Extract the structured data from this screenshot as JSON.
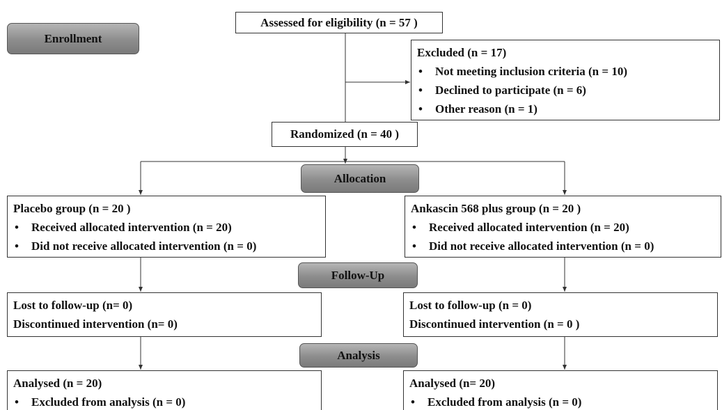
{
  "stages": [
    "Enrollment",
    "Allocation",
    "Follow-Up",
    "Analysis"
  ],
  "boxes": [
    {
      "title": "Assessed for eligibility (n = 57 )"
    },
    {
      "title": "Excluded (n = 17)",
      "bullets": [
        "Not meeting inclusion criteria (n = 10)",
        "Declined to participate (n = 6)",
        "Other reason (n = 1)"
      ]
    },
    {
      "title": "Randomized (n = 40 )"
    },
    {
      "title": "Placebo group (n = 20 )",
      "bullets": [
        "Received allocated intervention (n = 20)",
        "Did not receive allocated intervention (n = 0)"
      ]
    },
    {
      "title": "Ankascin 568 plus group (n = 20 )",
      "bullets": [
        "Received allocated intervention (n = 20)",
        "Did not receive allocated intervention (n = 0)"
      ]
    },
    {
      "title": "Lost to follow-up (n= 0)",
      "lines": [
        "Discontinued intervention (n= 0)"
      ]
    },
    {
      "title": "Lost to follow-up (n = 0)",
      "lines": [
        "Discontinued intervention (n = 0 )"
      ]
    },
    {
      "title": "Analysed (n = 20)",
      "bullets": [
        "Excluded from analysis (n = 0)"
      ]
    },
    {
      "title": "Analysed (n= 20)",
      "bullets": [
        "Excluded from analysis (n = 0)"
      ]
    }
  ]
}
